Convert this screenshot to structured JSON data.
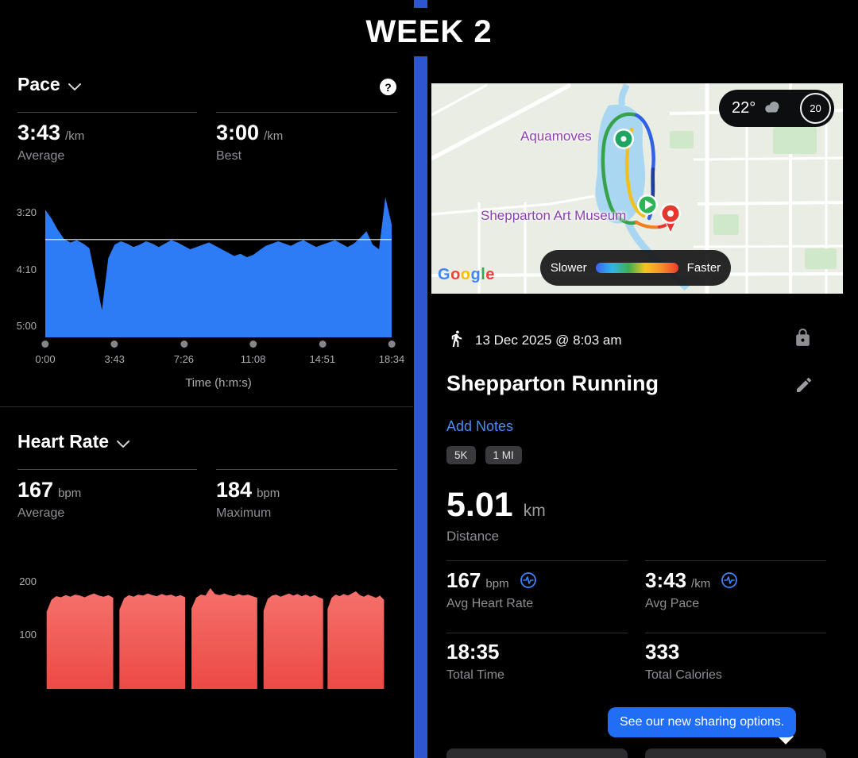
{
  "header": {
    "title": "WEEK 2"
  },
  "left_panel": {
    "pace": {
      "title": "Pace",
      "help_icon": "?",
      "stats": [
        {
          "value": "3:43",
          "unit": "/km",
          "label": "Average"
        },
        {
          "value": "3:00",
          "unit": "/km",
          "label": "Best"
        }
      ]
    },
    "heart_rate": {
      "title": "Heart Rate",
      "stats": [
        {
          "value": "167",
          "unit": "bpm",
          "label": "Average"
        },
        {
          "value": "184",
          "unit": "bpm",
          "label": "Maximum"
        }
      ]
    }
  },
  "chart_data": [
    {
      "type": "area",
      "name": "pace",
      "title": "Pace",
      "color": "#2e7bf6",
      "xlabel": "Time (h:m:s)",
      "x_ticks": [
        "0:00",
        "3:43",
        "7:26",
        "11:08",
        "14:51",
        "18:34"
      ],
      "y_ticks": [
        {
          "label": "3:20",
          "seconds": 200
        },
        {
          "label": "4:10",
          "seconds": 250
        },
        {
          "label": "5:00",
          "seconds": 300
        }
      ],
      "ylim_seconds_per_km": [
        180,
        310
      ],
      "avg_line_seconds": 223,
      "note": "y axis inverted: faster pace plotted higher",
      "values_seconds_per_km": [
        197,
        205,
        215,
        223,
        226,
        224,
        227,
        231,
        258,
        286,
        240,
        228,
        225,
        227,
        230,
        228,
        225,
        227,
        230,
        227,
        224,
        226,
        229,
        232,
        230,
        228,
        226,
        229,
        232,
        235,
        238,
        236,
        239,
        237,
        233,
        229,
        227,
        225,
        227,
        229,
        226,
        224,
        227,
        230,
        228,
        226,
        224,
        227,
        230,
        227,
        222,
        216,
        228,
        232,
        186,
        210
      ]
    },
    {
      "type": "area",
      "name": "heart_rate",
      "title": "Heart Rate",
      "color_top": "#f5706b",
      "color_bottom": "#ec4a45",
      "ylim_bpm": [
        0,
        222
      ],
      "y_ticks": [
        {
          "label": "200",
          "bpm": 200
        },
        {
          "label": "100",
          "bpm": 100
        }
      ],
      "segments": [
        {
          "x_start": 0.004,
          "x_end": 0.196,
          "values_bpm": [
            144,
            166,
            173,
            171,
            175,
            172,
            176,
            174,
            171,
            175,
            178,
            174,
            172,
            175,
            170
          ]
        },
        {
          "x_start": 0.214,
          "x_end": 0.404,
          "values_bpm": [
            148,
            169,
            175,
            172,
            176,
            174,
            178,
            175,
            173,
            177,
            174,
            176,
            172,
            175,
            171
          ]
        },
        {
          "x_start": 0.422,
          "x_end": 0.612,
          "values_bpm": [
            150,
            170,
            176,
            174,
            188,
            177,
            175,
            178,
            175,
            173,
            177,
            174,
            176,
            173,
            170
          ]
        },
        {
          "x_start": 0.63,
          "x_end": 0.802,
          "values_bpm": [
            146,
            168,
            174,
            176,
            172,
            175,
            178,
            174,
            177,
            173,
            176,
            172,
            175,
            171,
            168
          ]
        },
        {
          "x_start": 0.815,
          "x_end": 0.978,
          "values_bpm": [
            149,
            170,
            176,
            173,
            177,
            174,
            178,
            182,
            175,
            172,
            176,
            173,
            170,
            174,
            166
          ]
        }
      ]
    }
  ],
  "right_panel": {
    "map": {
      "labels": [
        {
          "text": "Aquamoves"
        },
        {
          "text": "Shepparton Art Museum"
        }
      ],
      "label_color": "#8d3fb2",
      "google_logo": "Google",
      "google_letter_colors": [
        "#4285F4",
        "#EA4335",
        "#FBBC05",
        "#4285F4",
        "#34A853",
        "#EA4335"
      ],
      "weather": {
        "temperature": "22°",
        "aqi": "20"
      },
      "pace_legend": {
        "slow_label": "Slower",
        "fast_label": "Faster",
        "gradient": [
          "#3b63f3",
          "#2fb6e8",
          "#3fae4e",
          "#f4c51f",
          "#f88c2b",
          "#ef3b2d"
        ]
      }
    },
    "activity": {
      "datetime": "13 Dec 2025 @ 8:03 am",
      "title": "Shepparton Running",
      "add_notes_label": "Add Notes",
      "badges": [
        "5K",
        "1 MI"
      ],
      "primary_stat": {
        "value": "5.01",
        "unit": "km",
        "label": "Distance"
      },
      "stats": [
        {
          "value": "167",
          "unit": "bpm",
          "label": "Avg Heart Rate"
        },
        {
          "value": "3:43",
          "unit": "/km",
          "label": "Avg Pace"
        },
        {
          "value": "18:35",
          "unit": "",
          "label": "Total Time"
        },
        {
          "value": "333",
          "unit": "",
          "label": "Total Calories"
        }
      ],
      "tooltip": "See our new sharing options.",
      "accent_blue": "#1f6ef5"
    }
  }
}
